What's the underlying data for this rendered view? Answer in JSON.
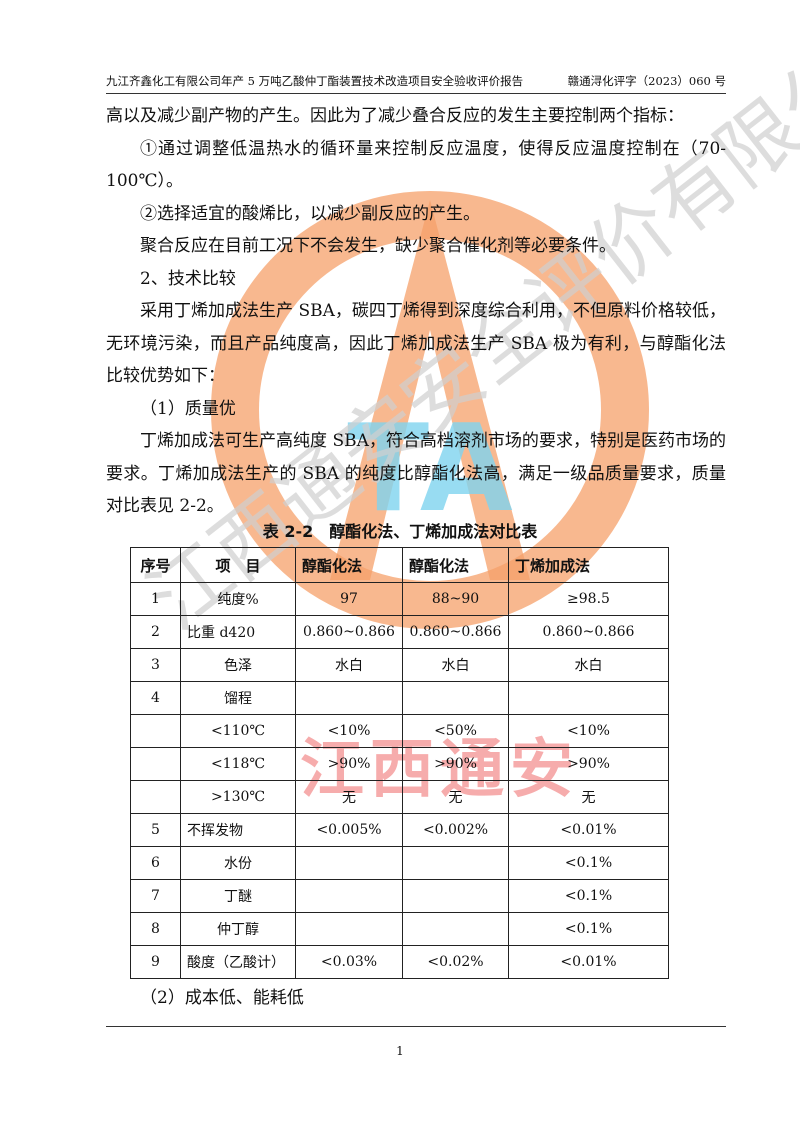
{
  "header": {
    "left": "九江齐鑫化工有限公司年产 5 万吨乙酸仲丁酯装置技术改造项目安全验收评价报告",
    "right": "赣通浔化评字（2023）060 号"
  },
  "paragraphs": [
    "高以及减少副产物的产生。因此为了减少叠合反应的发生主要控制两个指标：",
    "①通过调整低温热水的循环量来控制反应温度，使得反应温度控制在（70-100℃）。",
    "②选择适宜的酸烯比，以减少副反应的产生。",
    "聚合反应在目前工况下不会发生，缺少聚合催化剂等必要条件。",
    "2、技术比较",
    "采用丁烯加成法生产 SBA，碳四丁烯得到深度综合利用，不但原料价格较低，无环境污染，而且产品纯度高，因此丁烯加成法生产 SBA 极为有利，与醇酯化法比较优势如下：",
    "（1）质量优",
    "丁烯加成法可生产高纯度 SBA，符合高档溶剂市场的要求，特别是医药市场的要求。丁烯加成法生产的 SBA 的纯度比醇酯化法高，满足一级品质量要求，质量对比表见 2-2。"
  ],
  "table": {
    "caption": "表 2-2　醇酯化法、丁烯加成法对比表",
    "headers": [
      "序号",
      "项　目",
      "醇酯化法",
      "醇酯化法",
      "丁烯加成法"
    ],
    "rows": [
      [
        "1",
        "纯度%",
        "97",
        "88~90",
        "≥98.5"
      ],
      [
        "2",
        "比重 d420",
        "0.860~0.866",
        "0.860~0.866",
        "0.860~0.866"
      ],
      [
        "3",
        "色泽",
        "水白",
        "水白",
        "水白"
      ],
      [
        "4",
        "馏程",
        "",
        "",
        ""
      ],
      [
        "",
        "<110℃",
        "<10%",
        "<50%",
        "<10%"
      ],
      [
        "",
        "<118℃",
        ">90%",
        ">90%",
        ">90%"
      ],
      [
        "",
        ">130℃",
        "无",
        "无",
        "无"
      ],
      [
        "5",
        "不挥发物",
        "<0.005%",
        "<0.002%",
        "<0.01%"
      ],
      [
        "6",
        "水份",
        "",
        "",
        "<0.1%"
      ],
      [
        "7",
        "丁醚",
        "",
        "",
        "<0.1%"
      ],
      [
        "8",
        "仲丁醇",
        "",
        "",
        "<0.1%"
      ],
      [
        "9",
        "酸度（乙酸计）",
        "<0.03%",
        "<0.02%",
        "<0.01%"
      ]
    ]
  },
  "after_table": "（2）成本低、能耗低",
  "page_number": "1",
  "watermark": {
    "gray_text": "江西通安安全评价有限公司",
    "red_text": "江西通安",
    "logo_letters": "TA",
    "colors": {
      "orange": "#f5a06a",
      "red": "#f06a6a",
      "blue": "#7fd4f0",
      "gray": "#cccccc"
    }
  }
}
